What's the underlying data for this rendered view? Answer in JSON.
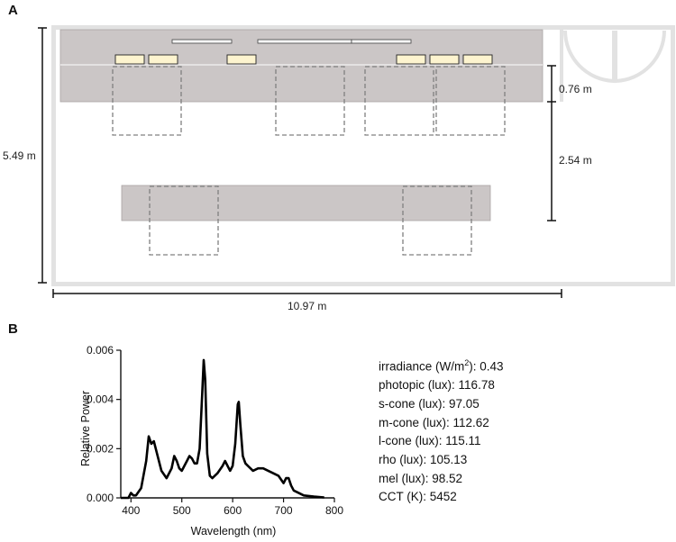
{
  "panel_a": {
    "label": "A",
    "dims": {
      "height": "5.49 m",
      "width": "10.97 m",
      "bench_depth": "0.76 m",
      "aisle": "2.54 m"
    }
  },
  "panel_b": {
    "label": "B",
    "stats": [
      {
        "label": "irradiance (W/m",
        "sup": "2",
        "suffix": "): 0.43"
      },
      {
        "label": "photopic (lux): 116.78",
        "sup": "",
        "suffix": ""
      },
      {
        "label": "s-cone (lux): 97.05",
        "sup": "",
        "suffix": ""
      },
      {
        "label": "m-cone (lux): 112.62",
        "sup": "",
        "suffix": ""
      },
      {
        "label": "l-cone (lux): 115.11",
        "sup": "",
        "suffix": ""
      },
      {
        "label": "rho (lux): 105.13",
        "sup": "",
        "suffix": ""
      },
      {
        "label": "mel (lux): 98.52",
        "sup": "",
        "suffix": ""
      },
      {
        "label": "CCT (K): 5452",
        "sup": "",
        "suffix": ""
      }
    ]
  },
  "chart_data": {
    "type": "line",
    "title": "",
    "xlabel": "Wavelength (nm)",
    "ylabel": "Relative Power",
    "xlim": [
      380,
      800
    ],
    "ylim": [
      0,
      0.006
    ],
    "xticks": [
      "400",
      "500",
      "600",
      "700",
      "800"
    ],
    "yticks": [
      "0.000",
      "0.002",
      "0.004",
      "0.006"
    ],
    "x": [
      380,
      395,
      400,
      405,
      410,
      420,
      430,
      435,
      440,
      445,
      450,
      460,
      470,
      480,
      485,
      490,
      495,
      500,
      510,
      515,
      520,
      525,
      530,
      535,
      540,
      543,
      546,
      550,
      555,
      560,
      570,
      580,
      585,
      590,
      595,
      600,
      605,
      610,
      612,
      615,
      620,
      625,
      630,
      640,
      650,
      660,
      670,
      680,
      690,
      700,
      705,
      710,
      715,
      720,
      740,
      760,
      780
    ],
    "values": [
      0,
      0,
      0.0002,
      0.0001,
      0.0001,
      0.0004,
      0.0015,
      0.0025,
      0.0022,
      0.0023,
      0.0019,
      0.0011,
      0.0008,
      0.0012,
      0.0017,
      0.0015,
      0.0012,
      0.0011,
      0.0015,
      0.0017,
      0.0016,
      0.0014,
      0.0014,
      0.002,
      0.0042,
      0.0056,
      0.0048,
      0.0018,
      0.0009,
      0.0008,
      0.001,
      0.0013,
      0.0015,
      0.0013,
      0.0011,
      0.0013,
      0.0022,
      0.0038,
      0.0039,
      0.003,
      0.0017,
      0.0014,
      0.0013,
      0.0011,
      0.0012,
      0.0012,
      0.0011,
      0.001,
      0.0009,
      0.0006,
      0.0008,
      0.0008,
      0.0005,
      0.0003,
      0.0001,
      5e-05,
      2e-05
    ]
  }
}
